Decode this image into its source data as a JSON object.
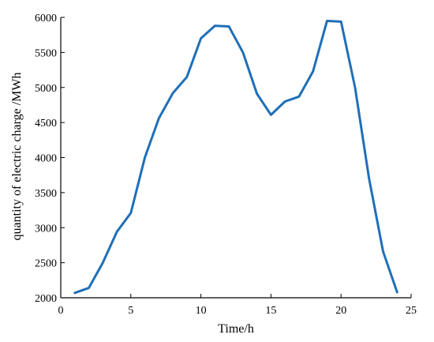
{
  "chart_data": {
    "type": "line",
    "title": "",
    "xlabel": "Time/h",
    "ylabel": "quantity of electric charge  /MWh",
    "xlim": [
      0,
      25
    ],
    "ylim": [
      2000,
      6000
    ],
    "xticks": [
      0,
      5,
      10,
      15,
      20,
      25
    ],
    "yticks": [
      2000,
      2500,
      3000,
      3500,
      4000,
      4500,
      5000,
      5500,
      6000
    ],
    "grid": false,
    "legend": "none",
    "series": [
      {
        "color": "#1f6fb8",
        "x": [
          1,
          2,
          3,
          4,
          5,
          6,
          7,
          8,
          9,
          10,
          11,
          12,
          13,
          14,
          15,
          16,
          17,
          18,
          19,
          20,
          21,
          22,
          23,
          24
        ],
        "y": [
          2070,
          2140,
          2500,
          2940,
          3210,
          4000,
          4560,
          4920,
          5150,
          5700,
          5880,
          5870,
          5500,
          4910,
          4610,
          4800,
          4870,
          5230,
          5950,
          5940,
          5000,
          3700,
          2660,
          2080
        ]
      }
    ]
  }
}
